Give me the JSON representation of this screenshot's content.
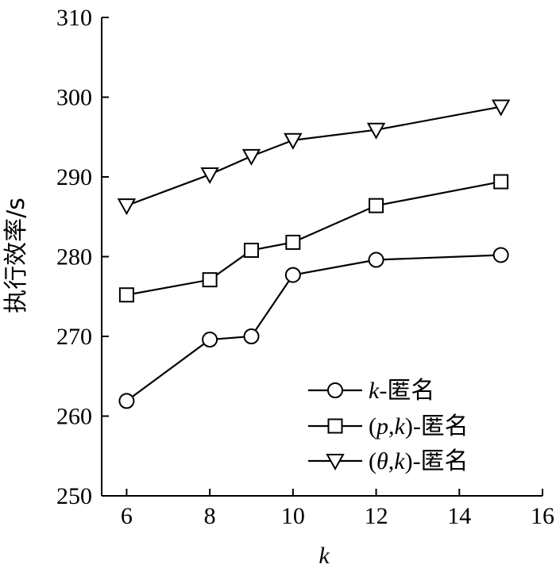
{
  "chart_data": {
    "type": "line",
    "xlabel": "k",
    "ylabel": "执行效率/s",
    "xlim": [
      5.4,
      16
    ],
    "ylim": [
      250,
      310
    ],
    "xticks": [
      6,
      8,
      10,
      12,
      14,
      16
    ],
    "yticks": [
      250,
      260,
      270,
      280,
      290,
      300,
      310
    ],
    "grid": false,
    "legend_position": "bottom-right",
    "series": [
      {
        "name": "k-匿名",
        "name_parts": [
          {
            "t": "k",
            "i": true
          },
          {
            "t": "-匿名",
            "i": false
          }
        ],
        "marker": "circle",
        "color": "#000000",
        "x": [
          6,
          8,
          9,
          10,
          12,
          15
        ],
        "y": [
          261.9,
          269.6,
          270.0,
          277.7,
          279.6,
          280.2
        ]
      },
      {
        "name": "(p,k)-匿名",
        "name_parts": [
          {
            "t": "(",
            "i": false
          },
          {
            "t": "p",
            "i": true
          },
          {
            "t": ",",
            "i": false
          },
          {
            "t": "k",
            "i": true
          },
          {
            "t": ")-匿名",
            "i": false
          }
        ],
        "marker": "square",
        "color": "#000000",
        "x": [
          6,
          8,
          9,
          10,
          12,
          15
        ],
        "y": [
          275.2,
          277.1,
          280.8,
          281.8,
          286.4,
          289.4
        ]
      },
      {
        "name": "(θ,k)-匿名",
        "name_parts": [
          {
            "t": "(",
            "i": false
          },
          {
            "t": "θ",
            "i": true
          },
          {
            "t": ",",
            "i": false
          },
          {
            "t": "k",
            "i": true
          },
          {
            "t": ")-匿名",
            "i": false
          }
        ],
        "marker": "triangle-down",
        "color": "#000000",
        "x": [
          6,
          8,
          9,
          10,
          12,
          15
        ],
        "y": [
          286.4,
          290.3,
          292.6,
          294.6,
          295.9,
          298.8
        ]
      }
    ]
  }
}
